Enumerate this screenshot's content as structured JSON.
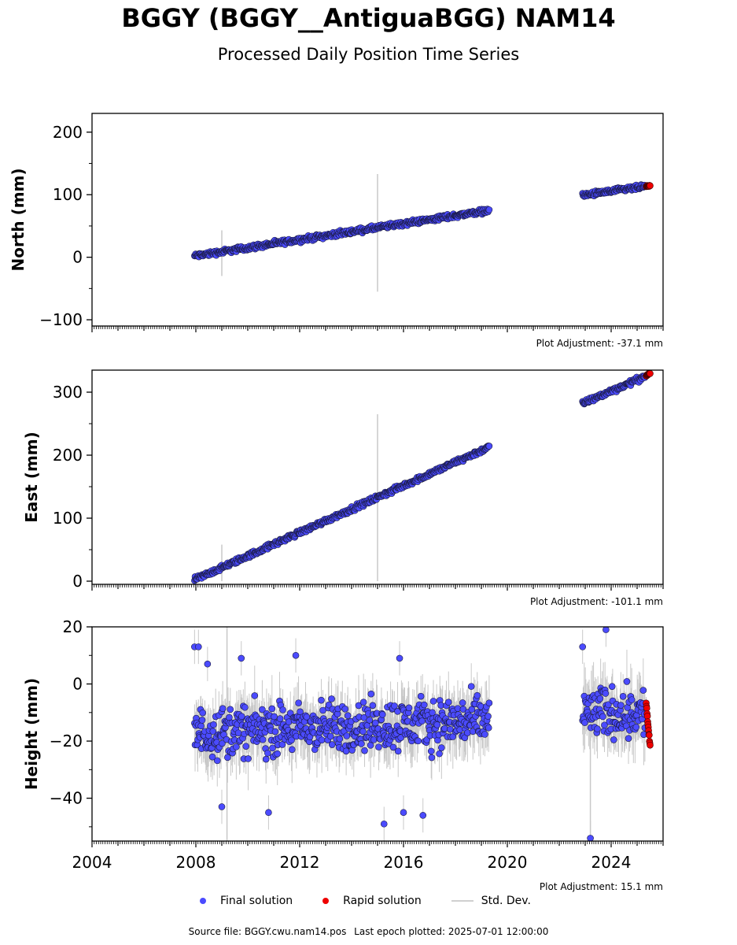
{
  "header": {
    "title": "BGGY (BGGY__AntiguaBGG) NAM14",
    "subtitle": "Processed Daily Position Time Series"
  },
  "legend": {
    "final": "Final solution",
    "rapid": "Rapid solution",
    "stddev": "Std. Dev."
  },
  "footer": {
    "source": "Source file: BGGY.cwu.nam14.pos",
    "last_epoch": "Last epoch plotted: 2025-07-01 12:00:00"
  },
  "colors": {
    "final": "#4b4bff",
    "rapid": "#ee0000",
    "stddev": "#c8c8c8",
    "marker_edge": "#1a1a40"
  },
  "chart_data": [
    {
      "type": "scatter",
      "ylabel": "North (mm)",
      "adjustment": "Plot Adjustment: -37.1 mm",
      "xlim": [
        2004.0,
        2026.0
      ],
      "ylim": [
        -110,
        230
      ],
      "yticks": [
        -100,
        0,
        100,
        200
      ],
      "xticks": [
        2004,
        2008,
        2012,
        2016,
        2020,
        2024
      ],
      "series": [
        {
          "kind": "final",
          "segments": [
            {
              "x": [
                2007.95,
                2019.3
              ],
              "y": [
                2,
                75
              ]
            },
            {
              "x": [
                2022.9,
                2025.3
              ],
              "y": [
                99,
                113
              ]
            }
          ],
          "noise": 3,
          "err": 4
        },
        {
          "kind": "rapid",
          "segments": [
            {
              "x": [
                2025.35,
                2025.5
              ],
              "y": [
                113,
                115
              ]
            }
          ],
          "noise": 1,
          "err": 2
        }
      ],
      "outlier_bars": [
        {
          "x": 2009.0,
          "y": [
            -30,
            43
          ]
        },
        {
          "x": 2015.0,
          "y": [
            -55,
            133
          ]
        }
      ]
    },
    {
      "type": "scatter",
      "ylabel": "East (mm)",
      "adjustment": "Plot Adjustment: -101.1 mm",
      "xlim": [
        2004.0,
        2026.0
      ],
      "ylim": [
        -5,
        335
      ],
      "yticks": [
        0,
        100,
        200,
        300
      ],
      "xticks": [
        2004,
        2008,
        2012,
        2016,
        2020,
        2024
      ],
      "series": [
        {
          "kind": "final",
          "segments": [
            {
              "x": [
                2007.95,
                2019.3
              ],
              "y": [
                2,
                213
              ]
            },
            {
              "x": [
                2022.9,
                2025.3
              ],
              "y": [
                282,
                325
              ]
            }
          ],
          "noise": 3,
          "err": 4
        },
        {
          "kind": "rapid",
          "segments": [
            {
              "x": [
                2025.35,
                2025.5
              ],
              "y": [
                326,
                330
              ]
            }
          ],
          "noise": 1,
          "err": 2
        }
      ],
      "outlier_bars": [
        {
          "x": 2009.0,
          "y": [
            0,
            58
          ]
        },
        {
          "x": 2015.0,
          "y": [
            0,
            265
          ]
        }
      ]
    },
    {
      "type": "scatter",
      "ylabel": "Height (mm)",
      "adjustment": "Plot Adjustment: 15.1 mm",
      "xlim": [
        2004.0,
        2026.0
      ],
      "ylim": [
        -55,
        20
      ],
      "yticks": [
        -40,
        -20,
        0,
        20
      ],
      "xticks": [
        2004,
        2008,
        2012,
        2016,
        2020,
        2024
      ],
      "series": [
        {
          "kind": "final",
          "segments": [
            {
              "x": [
                2007.95,
                2019.3
              ],
              "y": [
                -17,
                -13
              ]
            },
            {
              "x": [
                2022.9,
                2025.3
              ],
              "y": [
                -10,
                -10
              ]
            }
          ],
          "noise": 7,
          "err": 8
        },
        {
          "kind": "rapid",
          "segments": [
            {
              "x": [
                2025.35,
                2025.5
              ],
              "y": [
                -7,
                -22
              ]
            }
          ],
          "noise": 1,
          "err": 2
        }
      ],
      "outliers": [
        {
          "x": 2007.95,
          "y": 13
        },
        {
          "x": 2008.1,
          "y": 13
        },
        {
          "x": 2008.45,
          "y": 7
        },
        {
          "x": 2009.75,
          "y": 9
        },
        {
          "x": 2010.8,
          "y": -45
        },
        {
          "x": 2011.85,
          "y": 10
        },
        {
          "x": 2015.25,
          "y": -49
        },
        {
          "x": 2015.85,
          "y": 9
        },
        {
          "x": 2016.0,
          "y": -45
        },
        {
          "x": 2016.75,
          "y": -46
        },
        {
          "x": 2022.9,
          "y": 13
        },
        {
          "x": 2023.8,
          "y": 19
        },
        {
          "x": 2023.2,
          "y": -54
        },
        {
          "x": 2009.0,
          "y": -43
        }
      ],
      "outlier_bars": [
        {
          "x": 2009.2,
          "y": [
            -55,
            20
          ]
        },
        {
          "x": 2023.2,
          "y": [
            -55,
            -5
          ]
        }
      ]
    }
  ]
}
